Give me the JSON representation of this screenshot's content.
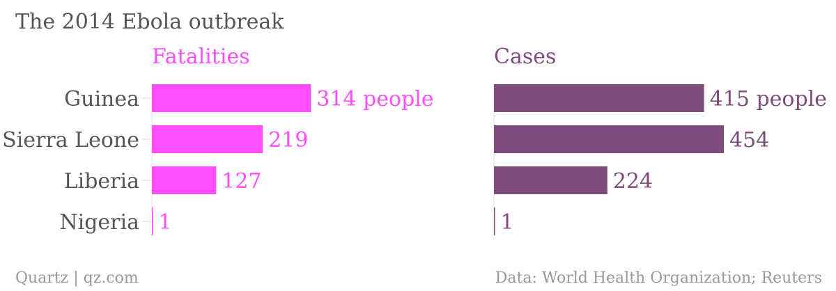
{
  "title": "The 2014 Ebola outbreak",
  "footer_left": "Quartz | qz.com",
  "footer_right": "Data: World Health Organization; Reuters",
  "colors": {
    "fatalities": "#ff4dff",
    "cases": "#7f4a7c",
    "label": "#555555",
    "footer": "#999999"
  },
  "chart_data": [
    {
      "type": "bar",
      "orientation": "horizontal",
      "title": "Fatalities",
      "categories": [
        "Guinea",
        "Sierra Leone",
        "Liberia",
        "Nigeria"
      ],
      "values": [
        314,
        219,
        127,
        1
      ],
      "value_labels": [
        "314 people",
        "219",
        "127",
        "1"
      ],
      "xlim": [
        0,
        454
      ]
    },
    {
      "type": "bar",
      "orientation": "horizontal",
      "title": "Cases",
      "categories": [
        "Guinea",
        "Sierra Leone",
        "Liberia",
        "Nigeria"
      ],
      "values": [
        415,
        454,
        224,
        1
      ],
      "value_labels": [
        "415 people",
        "454",
        "224",
        "1"
      ],
      "xlim": [
        0,
        454
      ]
    }
  ]
}
